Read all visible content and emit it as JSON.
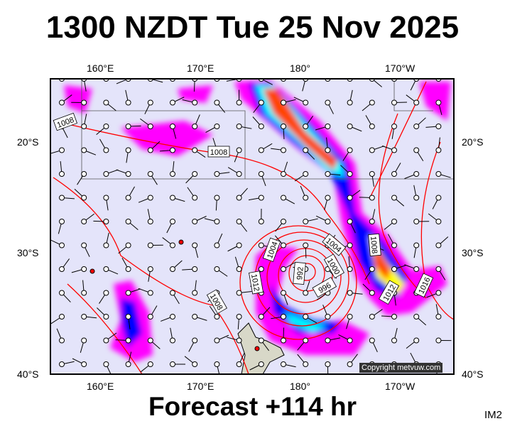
{
  "title": "1300 NZDT Tue 25 Nov 2025",
  "subtitle": "Forecast +114 hr",
  "chart_code": "IM2",
  "copyright": "Copyright metvuw.com",
  "longitude_labels": [
    "160°E",
    "170°E",
    "180°",
    "170°W"
  ],
  "latitude_labels": [
    "20°S",
    "30°S",
    "40°S"
  ],
  "isobar_labels": [
    "1008",
    "1008",
    "1004",
    "1004",
    "1000",
    "992",
    "996",
    "1008",
    "1012",
    "1008",
    "1012",
    "1016"
  ],
  "colors": {
    "ocean": "#e4e4fa",
    "isobar": "#ff0000",
    "land": "#d8d8c8",
    "precip_light": "#ff00ff",
    "precip_mid": "#0000ff",
    "precip_heavy": "#ff4400"
  }
}
